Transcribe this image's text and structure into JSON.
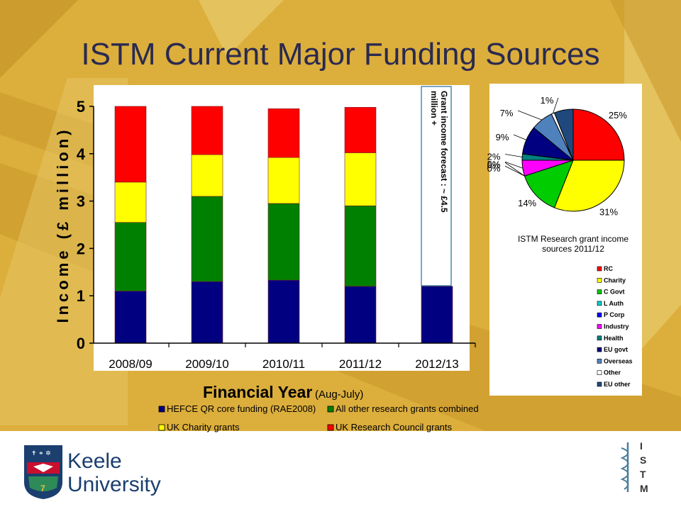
{
  "slide": {
    "title": "ISTM Current Major Funding Sources",
    "background_color": "#dcae3c",
    "logo_left": {
      "line1": "Keele",
      "line2": "University"
    },
    "logo_right_letters": [
      "I",
      "S",
      "T",
      "M"
    ]
  },
  "chart_data": [
    {
      "type": "bar",
      "stacked": true,
      "ylabel": "Income (£ million)",
      "xlabel": "Financial Year",
      "xlabel_suffix": "(Aug-July)",
      "ylim": [
        0,
        5
      ],
      "yticks": [
        "0",
        "1",
        "2",
        "3",
        "4",
        "5"
      ],
      "categories": [
        "2008/09",
        "2009/10",
        "2010/11",
        "2011/12",
        "2012/13"
      ],
      "series": [
        {
          "name": "HEFCE QR core funding (RAE2008)",
          "color": "#000080",
          "values": [
            1.1,
            1.3,
            1.33,
            1.2,
            1.2
          ]
        },
        {
          "name": "All other research grants combined",
          "color": "#008000",
          "values": [
            1.45,
            1.8,
            1.62,
            1.7,
            0
          ]
        },
        {
          "name": "UK Charity grants",
          "color": "#ffff00",
          "values": [
            0.85,
            0.88,
            0.97,
            1.12,
            0
          ]
        },
        {
          "name": "UK Research Council grants",
          "color": "#ff0000",
          "values": [
            1.6,
            1.02,
            1.03,
            0.96,
            0
          ]
        }
      ],
      "annotation": "Grant income forecast : ~ £4.5 million +",
      "grid": false,
      "legend_position": "bottom"
    },
    {
      "type": "pie",
      "title": "ISTM Research grant income sources 2011/12",
      "labels": [
        "RC",
        "Charity",
        "C Govt",
        "L Auth",
        "P Corp",
        "Industry",
        "Health",
        "EU govt",
        "Overseas",
        "Other",
        "EU other"
      ],
      "values": [
        25,
        31,
        14,
        0,
        0,
        5,
        2,
        9,
        7,
        1,
        6
      ],
      "data_labels": [
        "25%",
        "31%",
        "14%",
        "0%",
        "0%",
        "5%",
        "2%",
        "9%",
        "7%",
        "1%",
        ""
      ],
      "colors": [
        "#ff0000",
        "#ffff00",
        "#00cc00",
        "#00cccc",
        "#0000ff",
        "#ff00ff",
        "#008080",
        "#000080",
        "#4f81bd",
        "#ffffff",
        "#1f497d"
      ],
      "legend_position": "right"
    }
  ]
}
